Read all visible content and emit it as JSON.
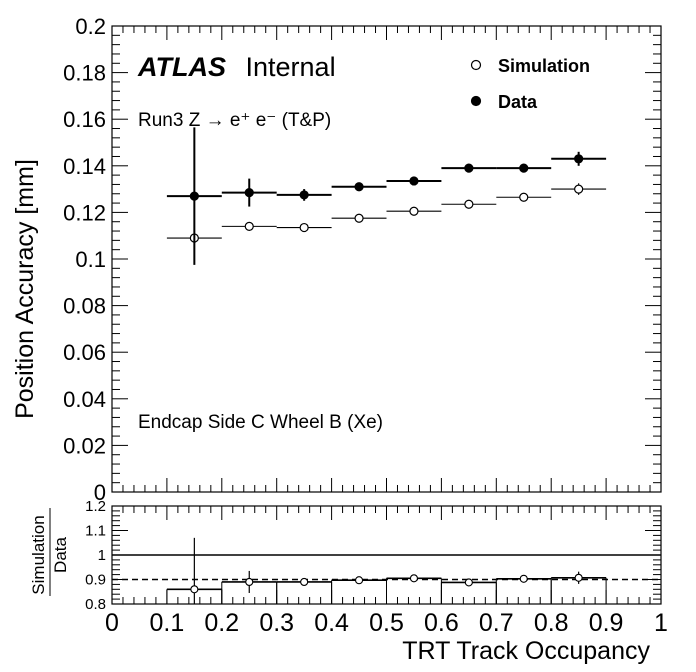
{
  "chart_data": [
    {
      "type": "scatter",
      "ylabel": "Position Accuracy [mm]",
      "xlim": [
        0,
        1
      ],
      "ylim": [
        0,
        0.2
      ],
      "yticks": [
        "0",
        "0.02",
        "0.04",
        "0.06",
        "0.08",
        "0.1",
        "0.12",
        "0.14",
        "0.16",
        "0.18",
        "0.2"
      ],
      "atlas_label": "ATLAS",
      "atlas_status": "Internal",
      "process_label": "Run3 Z → e⁺ e⁻ (T&P)",
      "region_label": "Endcap Side C Wheel B (Xe)",
      "legend": {
        "placement": "top-right",
        "entries": [
          "Simulation",
          "Data"
        ]
      },
      "bin_edges": [
        0.1,
        0.2,
        0.3,
        0.4,
        0.5,
        0.6,
        0.7,
        0.8,
        0.9
      ],
      "x": [
        0.15,
        0.25,
        0.35,
        0.45,
        0.55,
        0.65,
        0.75,
        0.85
      ],
      "series": [
        {
          "name": "Simulation",
          "marker": "open-circle",
          "values": [
            0.109,
            0.114,
            0.1135,
            0.1175,
            0.1205,
            0.1235,
            0.1265,
            0.13
          ],
          "errors": [
            0.001,
            0.0015,
            0.001,
            0.001,
            0.001,
            0.001,
            0.001,
            0.0025
          ]
        },
        {
          "name": "Data",
          "marker": "filled-circle",
          "values": [
            0.127,
            0.1285,
            0.1275,
            0.131,
            0.1335,
            0.139,
            0.139,
            0.143
          ],
          "errors": [
            0.0295,
            0.006,
            0.0025,
            0.0015,
            0.0015,
            0.001,
            0.0015,
            0.003
          ]
        }
      ]
    },
    {
      "type": "scatter",
      "ylabel_numerator": "Simulation",
      "ylabel_denominator": "Data",
      "xlabel": "TRT Track Occupancy",
      "xlim": [
        0,
        1
      ],
      "ylim": [
        0.8,
        1.2
      ],
      "xticks": [
        "0",
        "0.1",
        "0.2",
        "0.3",
        "0.4",
        "0.5",
        "0.6",
        "0.7",
        "0.8",
        "0.9",
        "1"
      ],
      "yticks": [
        "0.8",
        "0.9",
        "1",
        "1.1",
        "1.2"
      ],
      "reference_line": 1.0,
      "average_line": 0.9,
      "bin_edges": [
        0.1,
        0.2,
        0.3,
        0.4,
        0.5,
        0.6,
        0.7,
        0.8,
        0.9
      ],
      "x": [
        0.15,
        0.25,
        0.35,
        0.45,
        0.55,
        0.65,
        0.75,
        0.85
      ],
      "series": [
        {
          "name": "Simulation",
          "values": [
            0.86,
            0.89,
            0.89,
            0.897,
            0.905,
            0.888,
            0.903,
            0.907
          ],
          "errors": [
            0.21,
            0.045,
            0.01,
            0.008,
            0.008,
            0.008,
            0.008,
            0.025
          ]
        }
      ]
    }
  ]
}
